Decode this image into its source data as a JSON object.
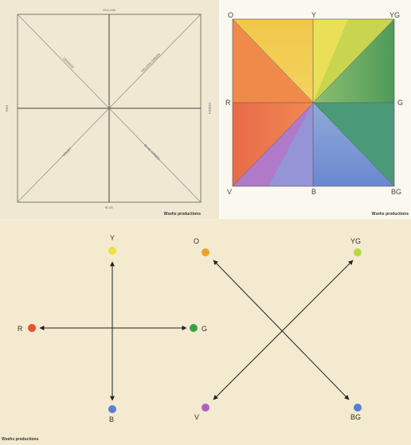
{
  "panel1": {
    "top_label": "YELLOW",
    "bottom_label": "BLUE",
    "left_label": "RED",
    "right_label": "GREEN",
    "diag_tl": "ORANGE",
    "diag_tr": "YELLOW-GREEN",
    "diag_bl": "VIOLET",
    "diag_br": "BLUE-GREEN",
    "credit": "Wsehs productions"
  },
  "panel2": {
    "corner_tl": "O",
    "top": "Y",
    "corner_tr": "YG",
    "left": "R",
    "right": "G",
    "corner_bl": "V",
    "bottom": "B",
    "corner_br": "BG",
    "credit": "Wsehs productions",
    "colors": {
      "yellow": "#f2e04a",
      "orange": "#f0a040",
      "red": "#e8603a",
      "green": "#5fa85a",
      "blue": "#6a8ed0",
      "violet": "#b070c0",
      "yellowgreen": "#b8d04a",
      "bluegreen": "#4a9a8a"
    }
  },
  "panel3": {
    "credit": "Wsehs productions",
    "left_diagram": {
      "nodes": [
        {
          "label": "Y",
          "color": "#f0e040"
        },
        {
          "label": "B",
          "color": "#5a80d0"
        },
        {
          "label": "R",
          "color": "#e85030"
        },
        {
          "label": "G",
          "color": "#3aa040"
        }
      ]
    },
    "right_diagram": {
      "nodes": [
        {
          "label": "O",
          "color": "#f0a030"
        },
        {
          "label": "YG",
          "color": "#b8d840"
        },
        {
          "label": "V",
          "color": "#b060c0"
        },
        {
          "label": "BG",
          "color": "#5080d0"
        }
      ]
    }
  }
}
